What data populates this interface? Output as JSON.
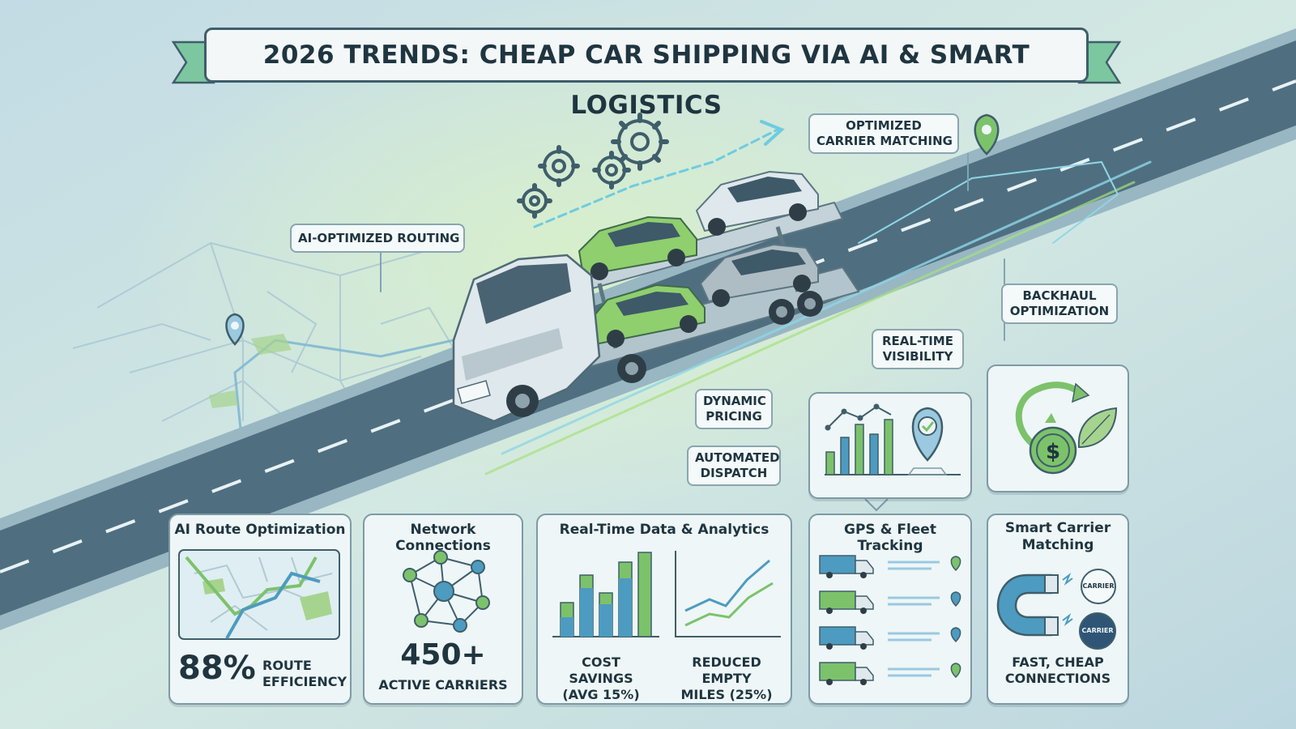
{
  "banner": {
    "title": "2026 TRENDS: CHEAP CAR SHIPPING VIA AI & SMART LOGISTICS"
  },
  "callouts": {
    "carrier_matching": [
      "OPTIMIZED",
      "CARRIER MATCHING"
    ],
    "ai_routing": "AI-OPTIMIZED ROUTING",
    "backhaul": [
      "BACKHAUL",
      "OPTIMIZATION"
    ],
    "realtime": [
      "REAL-TIME",
      "VISIBILITY"
    ],
    "dynamic_pricing": [
      "DYNAMIC",
      "PRICING"
    ],
    "automated_dispatch": [
      "AUTOMATED",
      "DISPATCH"
    ]
  },
  "cards": {
    "route": {
      "title": "AI Route Optimization",
      "value": "88%",
      "caption": [
        "ROUTE",
        "EFFICIENCY"
      ]
    },
    "network": {
      "title": "Network Connections",
      "value": "450+",
      "caption": "ACTIVE CARRIERS"
    },
    "analytics": {
      "title": "Real-Time Data & Analytics",
      "left_caption": [
        "COST SAVINGS",
        "(AVG 15%)"
      ],
      "right_caption": [
        "REDUCED EMPTY",
        "MILES (25%)"
      ]
    },
    "gps": {
      "title": "GPS & Fleet Tracking"
    },
    "matching": {
      "title": [
        "Smart Carrier",
        "Matching"
      ],
      "badge_top": "CARRIER",
      "badge_bottom": "CARRIER",
      "caption": [
        "FAST, CHEAP",
        "CONNECTIONS"
      ]
    }
  },
  "colors": {
    "background": "#c9dfe6",
    "road": "#4f6f80",
    "accent_green": "#7cc26b",
    "accent_blue": "#4d9bc0",
    "text": "#1f3540"
  },
  "icons": [
    "gear-icon",
    "location-pin-icon",
    "truck-icon",
    "magnet-icon",
    "dollar-coin-icon",
    "leaf-icon",
    "network-icon",
    "bar-chart-icon",
    "line-chart-icon",
    "map-icon"
  ]
}
